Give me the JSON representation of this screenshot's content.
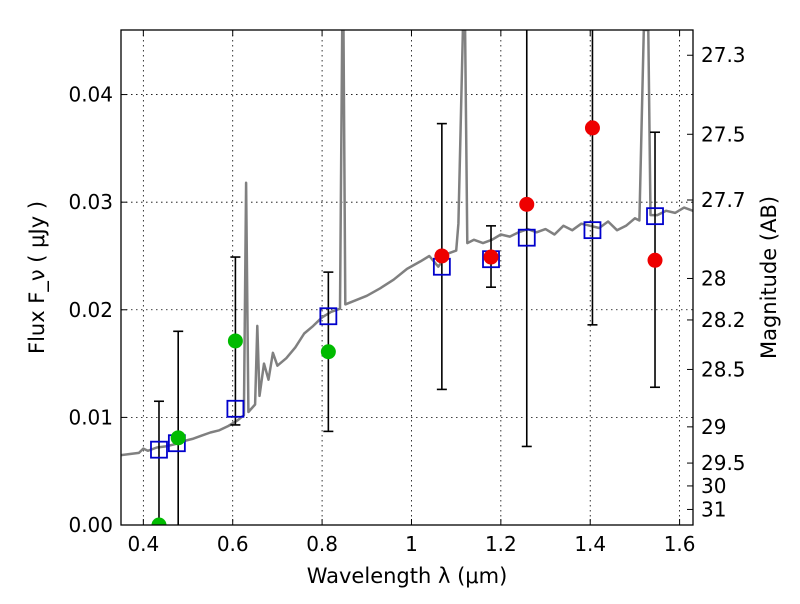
{
  "chart_data": {
    "type": "scatter",
    "title": "",
    "xlabel": "Wavelength  λ (μm)",
    "ylabel": "Flux  F_ν  ( μJy )",
    "ylabel_right": "Magnitude (AB)",
    "xlim": [
      0.35,
      1.63
    ],
    "ylim": [
      0.0,
      0.046
    ],
    "xticks": [
      0.4,
      0.6,
      0.8,
      1.0,
      1.2,
      1.4,
      1.6
    ],
    "xtick_labels": [
      "0.4",
      "0.6",
      "0.8",
      "1",
      "1.2",
      "1.4",
      "1.6"
    ],
    "yticks": [
      0.0,
      0.01,
      0.02,
      0.03,
      0.04
    ],
    "ytick_labels": [
      "0.00",
      "0.01",
      "0.02",
      "0.03",
      "0.04"
    ],
    "right_ticks": [
      {
        "label": "27.3",
        "mag": 27.3
      },
      {
        "label": "27.5",
        "mag": 27.5
      },
      {
        "label": "27.7",
        "mag": 27.7
      },
      {
        "label": "28",
        "mag": 28.0
      },
      {
        "label": "28.2",
        "mag": 28.2
      },
      {
        "label": "28.5",
        "mag": 28.5
      },
      {
        "label": "29",
        "mag": 29.0
      },
      {
        "label": "29.5",
        "mag": 29.5
      },
      {
        "label": "30",
        "mag": 30.0
      },
      {
        "label": "31",
        "mag": 31.0
      }
    ],
    "grid": true,
    "colors": {
      "template": "#808080",
      "model": "#0000cc",
      "green": "#00bb00",
      "red": "#ee0000",
      "errorbar": "#000000"
    },
    "template_spectrum": [
      [
        0.35,
        0.0065
      ],
      [
        0.37,
        0.0066
      ],
      [
        0.39,
        0.0067
      ],
      [
        0.4,
        0.0071
      ],
      [
        0.41,
        0.0069
      ],
      [
        0.43,
        0.0072
      ],
      [
        0.45,
        0.0073
      ],
      [
        0.47,
        0.0075
      ],
      [
        0.49,
        0.0078
      ],
      [
        0.51,
        0.008
      ],
      [
        0.53,
        0.0083
      ],
      [
        0.55,
        0.0086
      ],
      [
        0.57,
        0.0088
      ],
      [
        0.59,
        0.0092
      ],
      [
        0.61,
        0.0097
      ],
      [
        0.625,
        0.0102
      ],
      [
        0.63,
        0.0318
      ],
      [
        0.635,
        0.0105
      ],
      [
        0.65,
        0.0112
      ],
      [
        0.655,
        0.0185
      ],
      [
        0.66,
        0.012
      ],
      [
        0.67,
        0.015
      ],
      [
        0.68,
        0.0135
      ],
      [
        0.69,
        0.016
      ],
      [
        0.7,
        0.0148
      ],
      [
        0.72,
        0.0155
      ],
      [
        0.74,
        0.0165
      ],
      [
        0.76,
        0.0178
      ],
      [
        0.78,
        0.0185
      ],
      [
        0.8,
        0.0193
      ],
      [
        0.82,
        0.0198
      ],
      [
        0.84,
        0.0201
      ],
      [
        0.845,
        0.046
      ],
      [
        0.848,
        0.046
      ],
      [
        0.852,
        0.0205
      ],
      [
        0.87,
        0.0208
      ],
      [
        0.9,
        0.0213
      ],
      [
        0.93,
        0.022
      ],
      [
        0.96,
        0.0228
      ],
      [
        0.99,
        0.0238
      ],
      [
        1.02,
        0.0245
      ],
      [
        1.04,
        0.025
      ],
      [
        1.06,
        0.024
      ],
      [
        1.08,
        0.0252
      ],
      [
        1.1,
        0.0255
      ],
      [
        1.105,
        0.028
      ],
      [
        1.115,
        0.046
      ],
      [
        1.12,
        0.046
      ],
      [
        1.125,
        0.0262
      ],
      [
        1.14,
        0.0265
      ],
      [
        1.16,
        0.0262
      ],
      [
        1.18,
        0.0265
      ],
      [
        1.2,
        0.027
      ],
      [
        1.22,
        0.0268
      ],
      [
        1.24,
        0.0272
      ],
      [
        1.26,
        0.0275
      ],
      [
        1.28,
        0.0272
      ],
      [
        1.3,
        0.0275
      ],
      [
        1.32,
        0.027
      ],
      [
        1.34,
        0.0278
      ],
      [
        1.36,
        0.0274
      ],
      [
        1.38,
        0.028
      ],
      [
        1.4,
        0.0278
      ],
      [
        1.42,
        0.0276
      ],
      [
        1.44,
        0.0282
      ],
      [
        1.46,
        0.0274
      ],
      [
        1.48,
        0.0278
      ],
      [
        1.5,
        0.0285
      ],
      [
        1.51,
        0.0283
      ],
      [
        1.52,
        0.046
      ],
      [
        1.53,
        0.046
      ],
      [
        1.535,
        0.0288
      ],
      [
        1.55,
        0.0288
      ],
      [
        1.57,
        0.0292
      ],
      [
        1.59,
        0.029
      ],
      [
        1.61,
        0.0295
      ],
      [
        1.63,
        0.0292
      ]
    ],
    "model_photometry": [
      {
        "x": 0.435,
        "y": 0.007
      },
      {
        "x": 0.475,
        "y": 0.0076
      },
      {
        "x": 0.606,
        "y": 0.0108
      },
      {
        "x": 0.814,
        "y": 0.0194
      },
      {
        "x": 1.068,
        "y": 0.024
      },
      {
        "x": 1.178,
        "y": 0.0247
      },
      {
        "x": 1.258,
        "y": 0.0267
      },
      {
        "x": 1.405,
        "y": 0.0274
      },
      {
        "x": 1.545,
        "y": 0.0287
      }
    ],
    "observed_green": [
      {
        "x": 0.435,
        "y": 0.0
      },
      {
        "x": 0.478,
        "y": 0.0081
      },
      {
        "x": 0.606,
        "y": 0.0171
      },
      {
        "x": 0.814,
        "y": 0.0161
      }
    ],
    "observed_red": [
      {
        "x": 1.068,
        "y": 0.025
      },
      {
        "x": 1.178,
        "y": 0.0249
      },
      {
        "x": 1.258,
        "y": 0.0298
      },
      {
        "x": 1.405,
        "y": 0.0369
      },
      {
        "x": 1.545,
        "y": 0.0246
      }
    ],
    "error_bars": [
      {
        "x": 0.435,
        "low": 0.0,
        "high": 0.0115
      },
      {
        "x": 0.478,
        "low": 0.0,
        "high": 0.018
      },
      {
        "x": 0.606,
        "low": 0.0093,
        "high": 0.0249
      },
      {
        "x": 0.814,
        "low": 0.0087,
        "high": 0.0235
      },
      {
        "x": 1.068,
        "low": 0.0126,
        "high": 0.0373
      },
      {
        "x": 1.178,
        "low": 0.0221,
        "high": 0.0278
      },
      {
        "x": 1.258,
        "low": 0.0073,
        "high": 0.046
      },
      {
        "x": 1.405,
        "low": 0.0186,
        "high": 0.046
      },
      {
        "x": 1.545,
        "low": 0.0128,
        "high": 0.0365
      }
    ]
  }
}
